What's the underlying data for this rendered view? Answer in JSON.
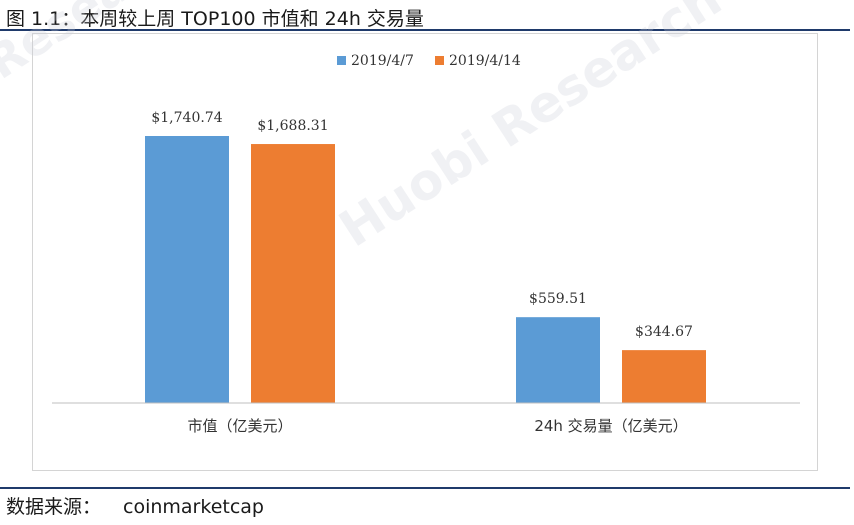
{
  "figure_title": "图 1.1：本周较上周 TOP100 市值和 24h 交易量",
  "source": {
    "label": "数据来源：",
    "value": "coinmarketcap"
  },
  "watermark": {
    "main": "Huobi Research",
    "corner": "Research"
  },
  "colors": {
    "series1": "#5b9bd5",
    "series2": "#ed7d31",
    "axis": "#bfbfbf",
    "rule": "#1f3a6b"
  },
  "chart_data": {
    "type": "bar",
    "title": "",
    "categories": [
      "市值（亿美元）",
      "24h 交易量（亿美元）"
    ],
    "series": [
      {
        "name": "2019/4/7",
        "values": [
          1740.74,
          559.51
        ],
        "labels": [
          "$1,740.74",
          "$559.51"
        ]
      },
      {
        "name": "2019/4/14",
        "values": [
          1688.31,
          344.67
        ],
        "labels": [
          "$1,688.31",
          "$344.67"
        ]
      }
    ],
    "ylim": [
      0,
      2000
    ],
    "grid": false,
    "legend_position": "top"
  }
}
